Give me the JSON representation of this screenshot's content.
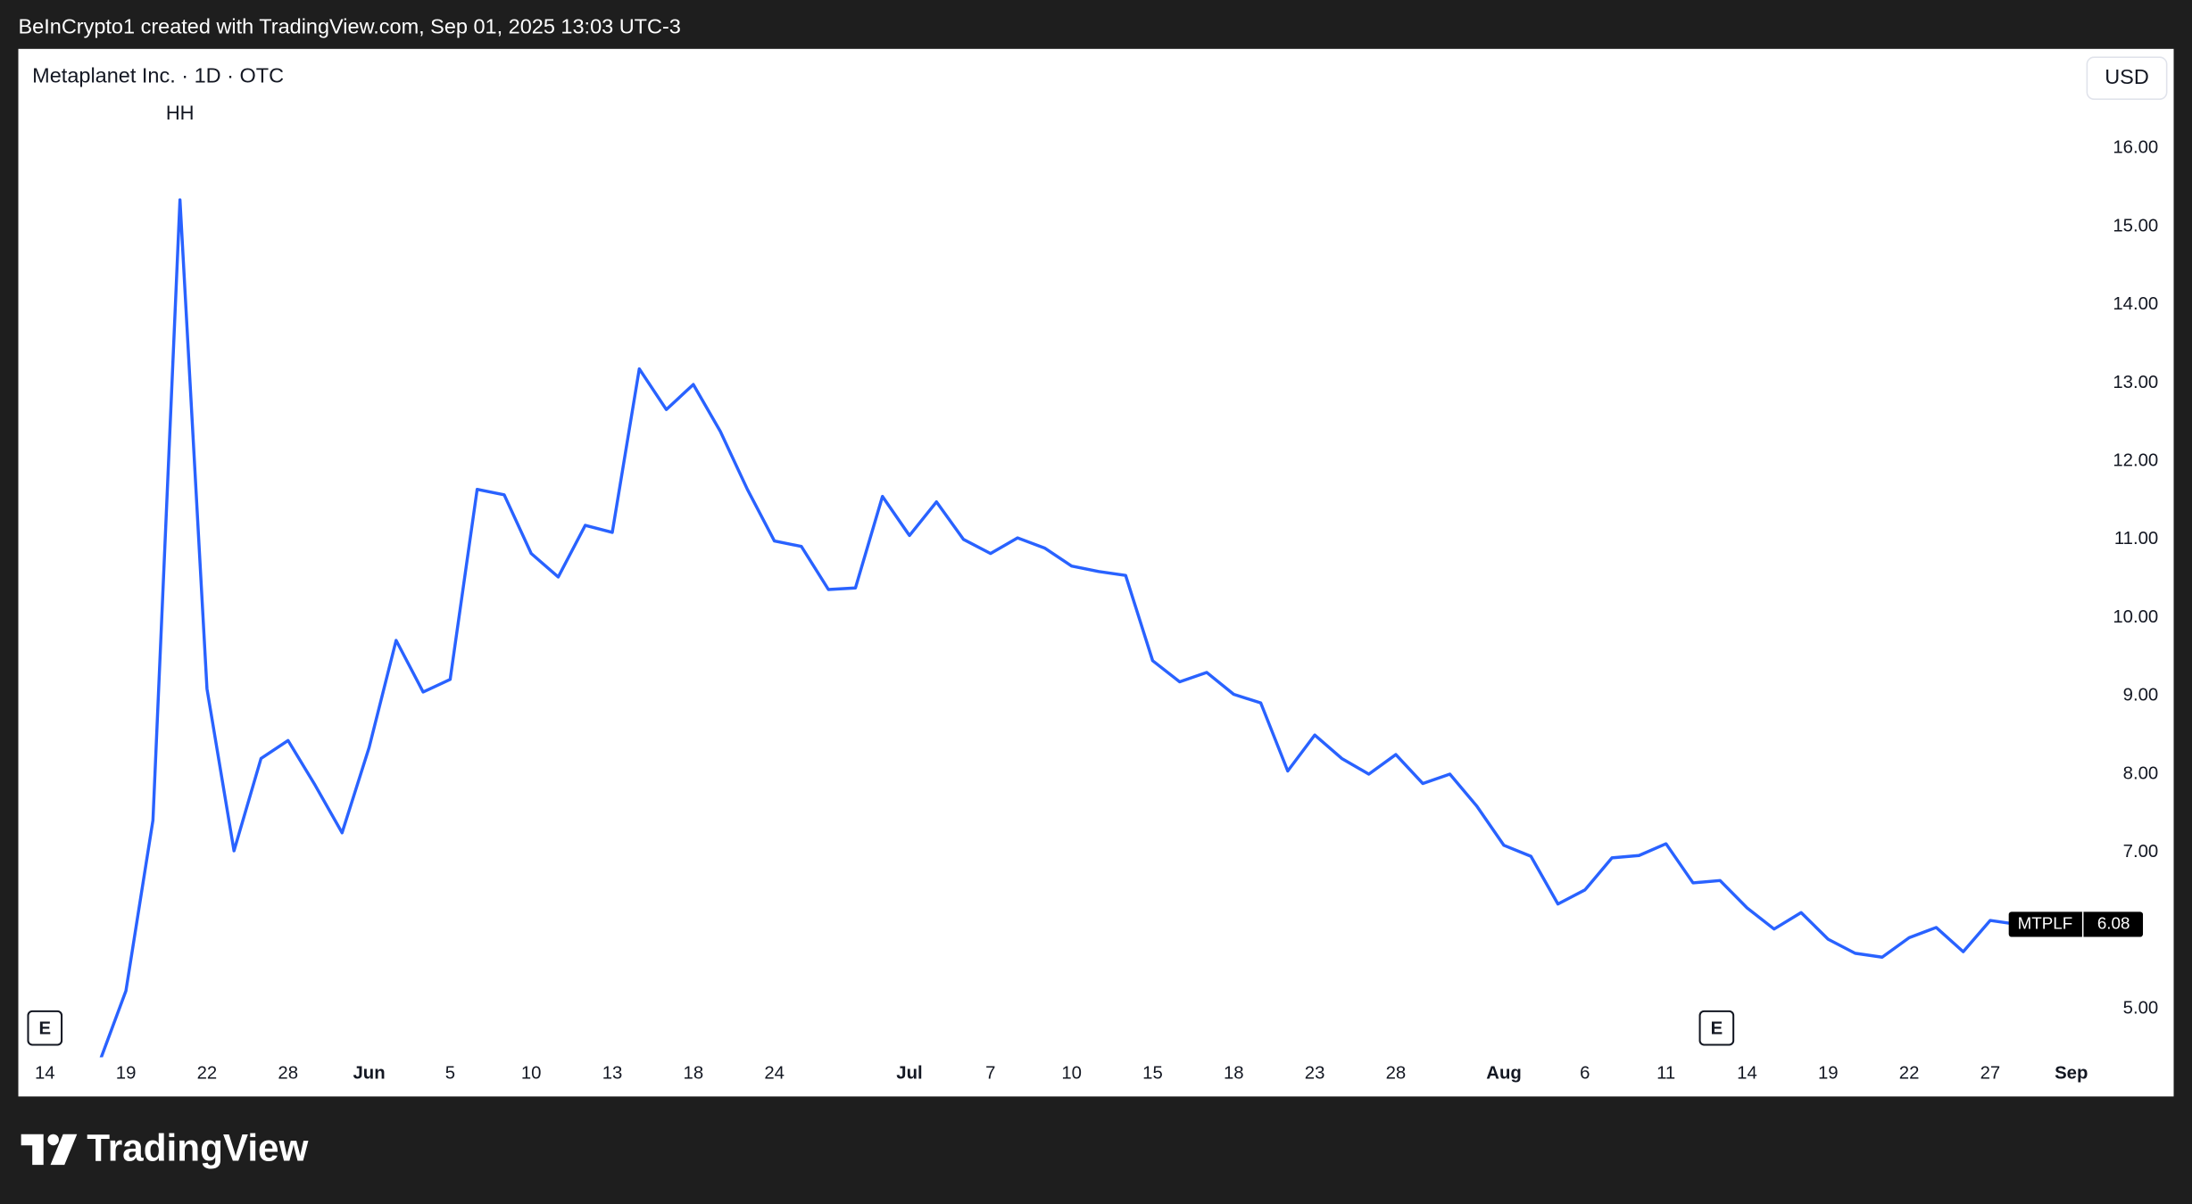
{
  "header": "BeInCrypto1 created with TradingView.com, Sep 01, 2025 13:03 UTC-3",
  "footer": {
    "brand": "TradingView"
  },
  "chart_data": {
    "type": "line",
    "title": "Metaplanet Inc. · 1D · OTC",
    "currency": "USD",
    "annotation": {
      "text": "HH",
      "index": 5
    },
    "event_labels": [
      "E",
      "E"
    ],
    "categories": [
      "14",
      null,
      null,
      "19",
      null,
      null,
      "22",
      null,
      null,
      "28",
      null,
      null,
      "Jun",
      null,
      null,
      "5",
      null,
      null,
      "10",
      null,
      null,
      "13",
      null,
      null,
      "18",
      null,
      null,
      "24",
      null,
      null,
      null,
      null,
      "Jul",
      null,
      null,
      "7",
      null,
      null,
      "10",
      null,
      null,
      "15",
      null,
      null,
      "18",
      null,
      null,
      "23",
      null,
      null,
      "28",
      null,
      null,
      null,
      "Aug",
      null,
      null,
      "6",
      null,
      null,
      "11",
      null,
      null,
      "14",
      null,
      null,
      "19",
      null,
      null,
      "22",
      null,
      null,
      "27",
      null,
      null,
      "Sep"
    ],
    "series": [
      {
        "name": "MTPLF",
        "color": "#2962ff",
        "values": [
          null,
          null,
          4.3,
          5.23,
          7.41,
          15.34,
          9.09,
          7.02,
          8.2,
          8.43,
          7.86,
          7.25,
          8.34,
          9.71,
          9.05,
          9.21,
          11.64,
          11.57,
          10.82,
          10.52,
          11.18,
          11.09,
          13.18,
          12.66,
          12.98,
          12.38,
          11.64,
          10.98,
          10.91,
          10.36,
          10.38,
          11.55,
          11.05,
          11.48,
          11.0,
          10.82,
          11.02,
          10.89,
          10.66,
          10.59,
          10.54,
          9.45,
          9.18,
          9.3,
          9.02,
          8.91,
          8.04,
          8.5,
          8.2,
          8.0,
          8.25,
          7.88,
          8.0,
          7.59,
          7.09,
          6.95,
          6.34,
          6.52,
          6.93,
          6.96,
          7.11,
          6.61,
          6.64,
          6.29,
          6.02,
          6.23,
          5.89,
          5.71,
          5.66,
          5.91,
          6.04,
          5.73,
          6.13,
          6.08,
          null,
          null
        ]
      }
    ],
    "ylim": [
      4.38,
      17.27
    ],
    "yticks": [
      {
        "value": 5,
        "label": "5.00"
      },
      {
        "value": 7,
        "label": "7.00"
      },
      {
        "value": 8,
        "label": "8.00"
      },
      {
        "value": 9,
        "label": "9.00"
      },
      {
        "value": 10,
        "label": "10.00"
      },
      {
        "value": 11,
        "label": "11.00"
      },
      {
        "value": 12,
        "label": "12.00"
      },
      {
        "value": 13,
        "label": "13.00"
      },
      {
        "value": 14,
        "label": "14.00"
      },
      {
        "value": 15,
        "label": "15.00"
      },
      {
        "value": 16,
        "label": "16.00"
      }
    ],
    "grid": false
  }
}
